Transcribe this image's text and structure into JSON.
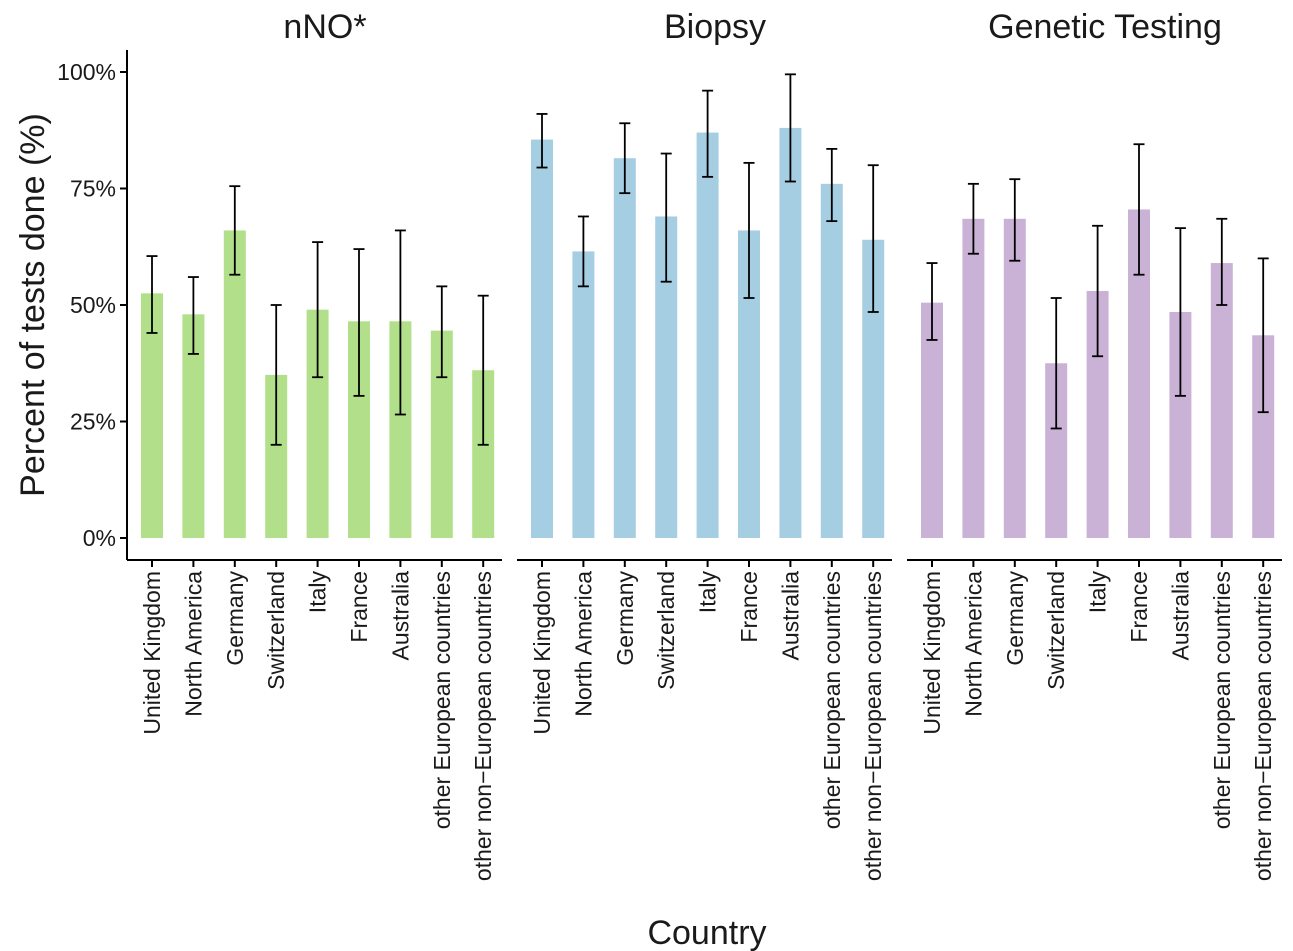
{
  "chart_data": {
    "type": "bar",
    "ylabel": "Percent of tests done (%)",
    "xlabel": "Country",
    "ylim": [
      0,
      100
    ],
    "yticks": [
      {
        "value": 0,
        "label": "0%"
      },
      {
        "value": 25,
        "label": "25%"
      },
      {
        "value": 50,
        "label": "50%"
      },
      {
        "value": 75,
        "label": "75%"
      },
      {
        "value": 100,
        "label": "100%"
      }
    ],
    "grid": false,
    "categories": [
      "United Kingdom",
      "North America",
      "Germany",
      "Switzerland",
      "Italy",
      "France",
      "Australia",
      "other European countries",
      "other non−European countries"
    ],
    "panels": [
      {
        "title": "nNO*",
        "color": "#b2df8a",
        "values": [
          52.5,
          48,
          66,
          35,
          49,
          46.5,
          46.5,
          44.5,
          36
        ],
        "error_low": [
          44,
          39.5,
          56.5,
          20,
          34.5,
          30.5,
          26.5,
          34.5,
          20
        ],
        "error_high": [
          60.5,
          56,
          75.5,
          50,
          63.5,
          62,
          66,
          54,
          52
        ]
      },
      {
        "title": "Biopsy",
        "color": "#a6cee3",
        "values": [
          85.5,
          61.5,
          81.5,
          69,
          87,
          66,
          88,
          76,
          64
        ],
        "error_low": [
          79.5,
          54,
          74,
          55,
          77.5,
          51.5,
          76.5,
          68,
          48.5
        ],
        "error_high": [
          91,
          69,
          89,
          82.5,
          96,
          80.5,
          99.5,
          83.5,
          80
        ]
      },
      {
        "title": "Genetic Testing",
        "color": "#cab2d6",
        "values": [
          50.5,
          68.5,
          68.5,
          37.5,
          53,
          70.5,
          48.5,
          59,
          43.5
        ],
        "error_low": [
          42.5,
          61,
          59.5,
          23.5,
          39,
          56.5,
          30.5,
          50,
          27
        ],
        "error_high": [
          59,
          76,
          77,
          51.5,
          67,
          84.5,
          66.5,
          68.5,
          60
        ]
      }
    ]
  }
}
